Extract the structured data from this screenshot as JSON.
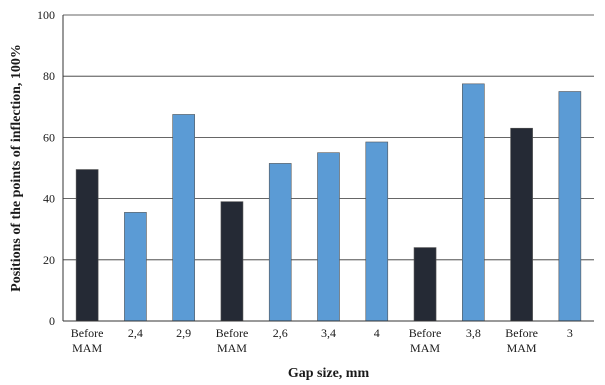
{
  "chart_data": {
    "type": "bar",
    "title": "",
    "xlabel": "Gap size, mm",
    "ylabel": "Positions of the points of inflection, 100%",
    "ylim": [
      0,
      100
    ],
    "yticks": [
      0,
      20,
      40,
      60,
      80,
      100
    ],
    "grid": true,
    "categories": [
      [
        "Before",
        "MAM"
      ],
      [
        "2,4"
      ],
      [
        "2,9"
      ],
      [
        "Before",
        "MAM"
      ],
      [
        "2,6"
      ],
      [
        "3,4"
      ],
      [
        "4"
      ],
      [
        "Before",
        "MAM"
      ],
      [
        "3,8"
      ],
      [
        "Before",
        "MAM"
      ],
      [
        "3"
      ]
    ],
    "values": [
      49.5,
      35.5,
      67.5,
      39,
      51.5,
      55,
      58.5,
      24,
      77.5,
      63,
      75
    ],
    "bar_colors": [
      "#252a35",
      "#5b9bd5",
      "#5b9bd5",
      "#252a35",
      "#5b9bd5",
      "#5b9bd5",
      "#5b9bd5",
      "#252a35",
      "#5b9bd5",
      "#252a35",
      "#5b9bd5"
    ]
  }
}
